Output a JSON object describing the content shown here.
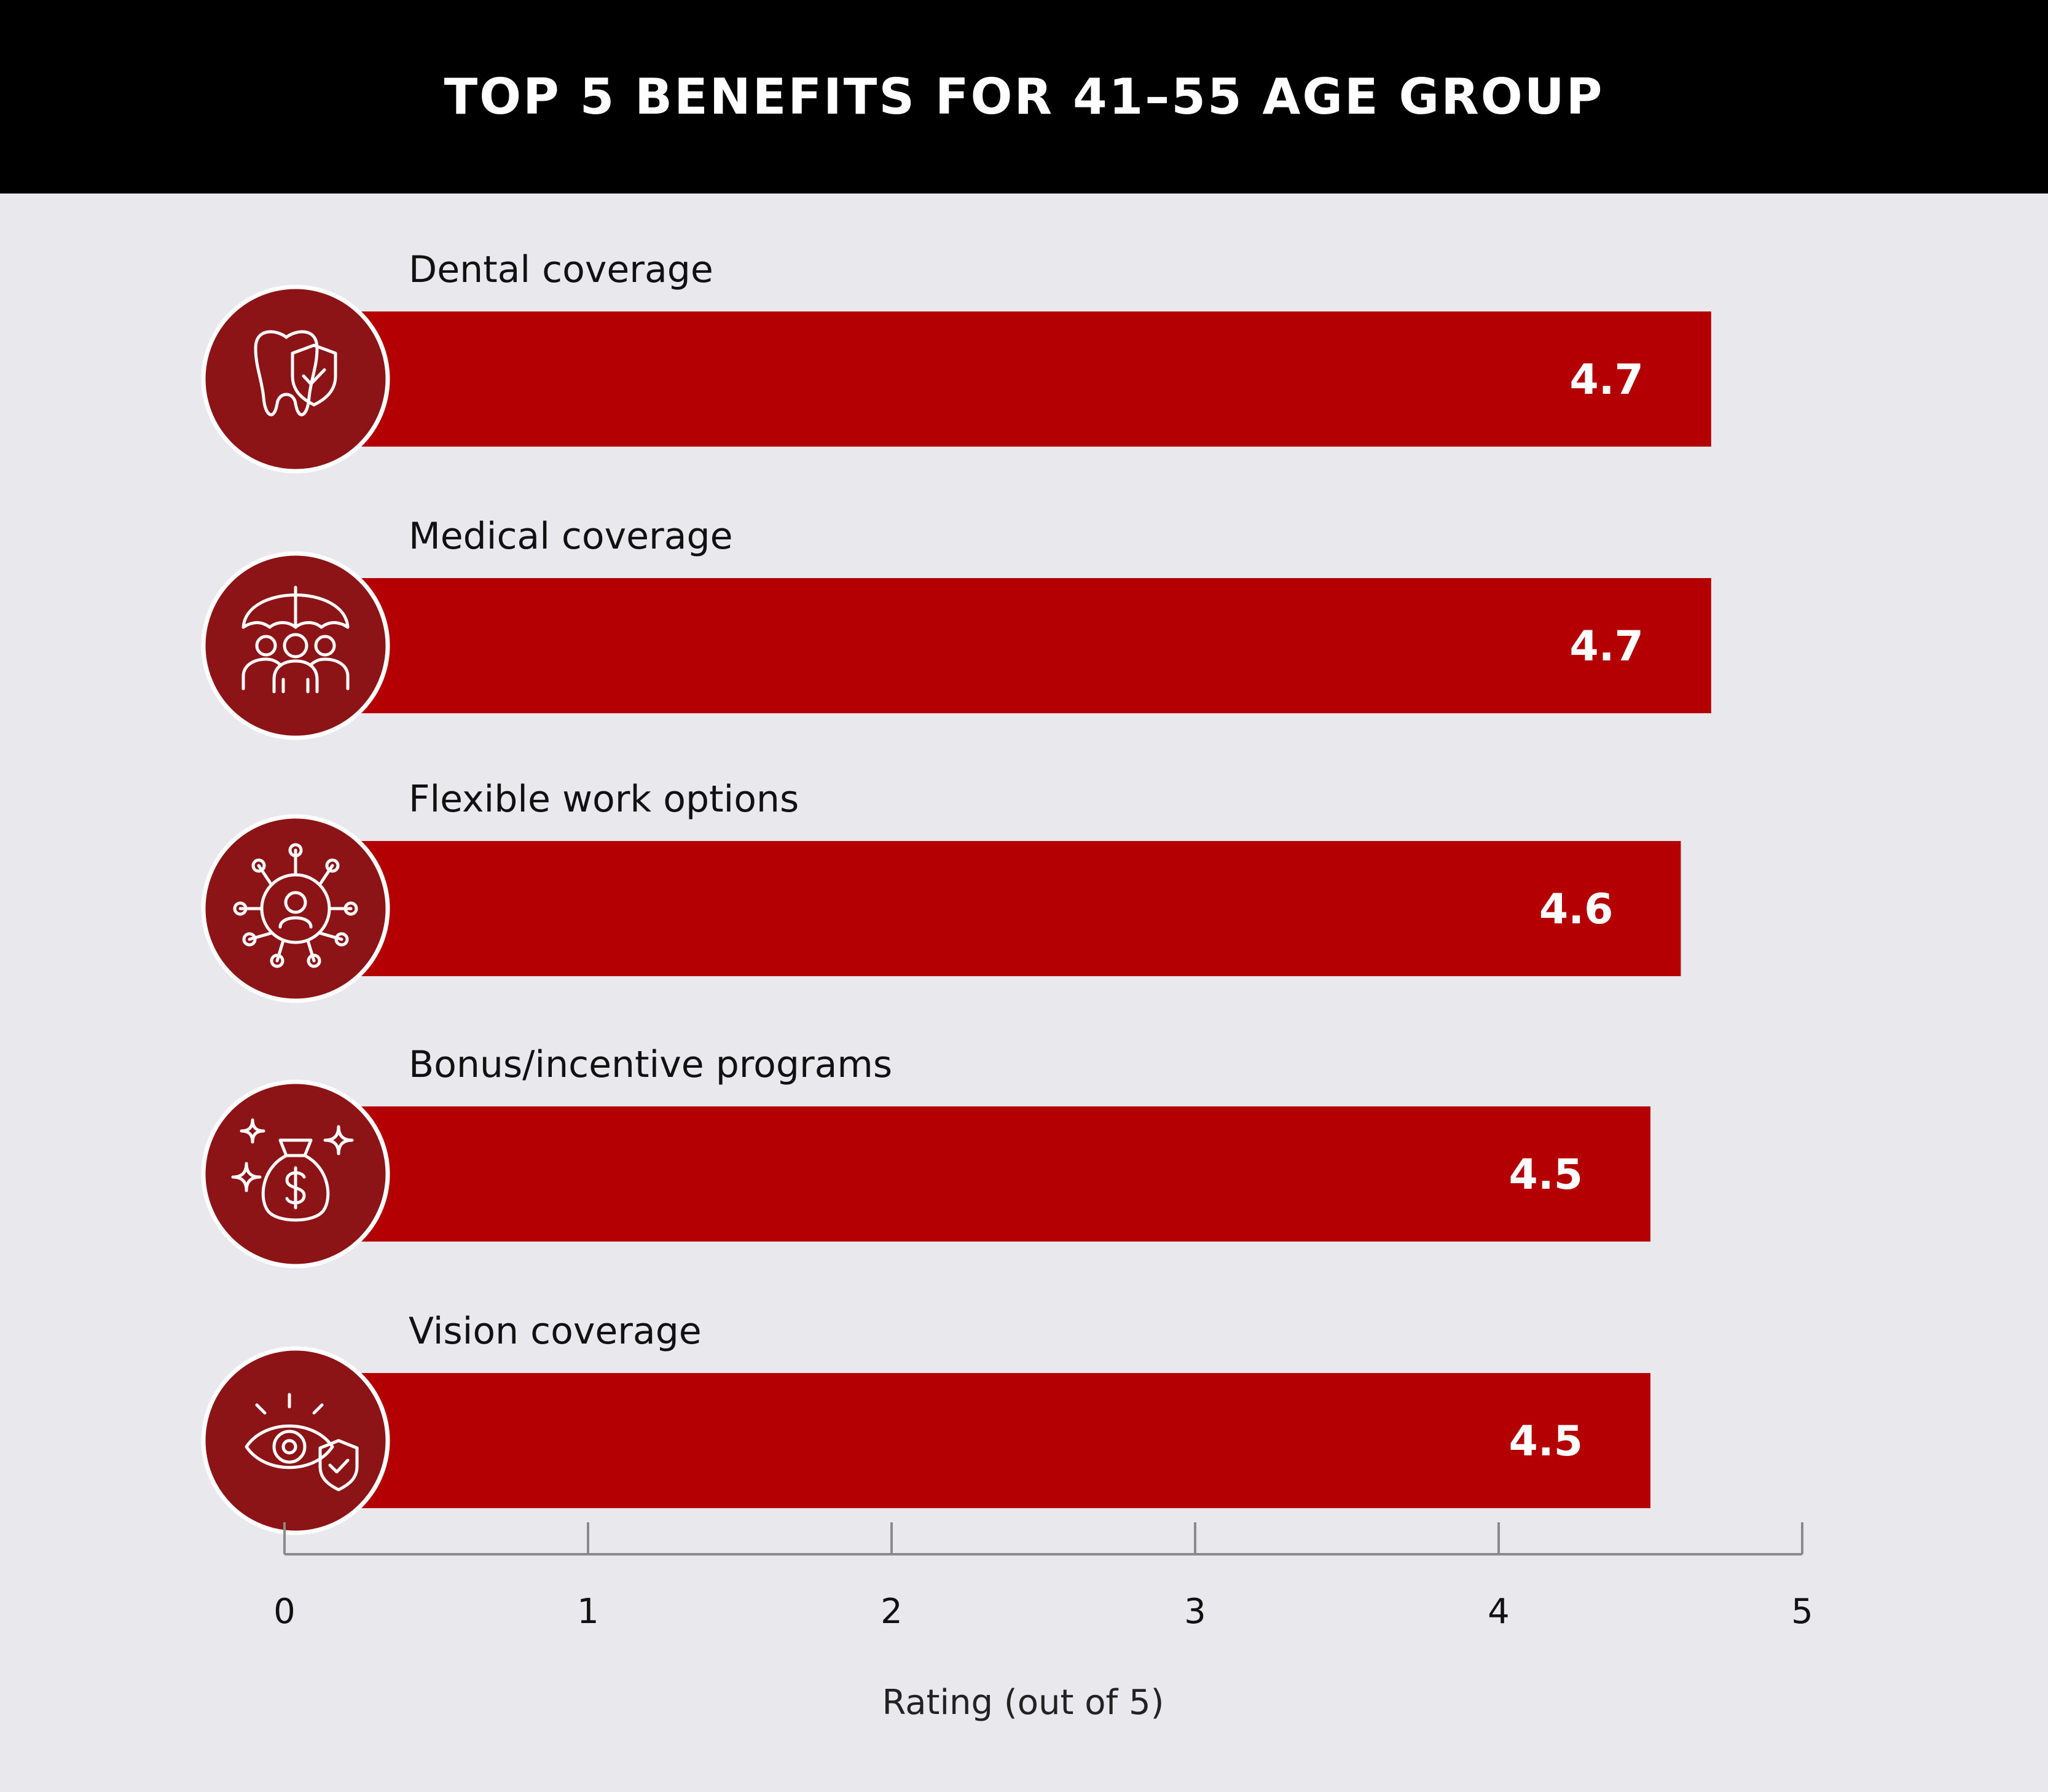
{
  "header": {
    "title": "TOP 5 BENEFITS FOR 41–55 AGE GROUP"
  },
  "colors": {
    "background": "#e8e8ed",
    "header_bg": "#000000",
    "bar": "#b50003",
    "icon_circle": "#8c1417",
    "axis": "#8a8a8a"
  },
  "chart_data": {
    "type": "bar",
    "orientation": "horizontal",
    "title": "TOP 5 BENEFITS FOR 41–55 AGE GROUP",
    "categories": [
      "Dental coverage",
      "Medical coverage",
      "Flexible work options",
      "Bonus/incentive programs",
      "Vision coverage"
    ],
    "values": [
      4.7,
      4.7,
      4.6,
      4.5,
      4.5
    ],
    "value_labels": [
      "4.7",
      "4.7",
      "4.6",
      "4.5",
      "4.5"
    ],
    "icons": [
      "tooth-shield-icon",
      "umbrella-family-icon",
      "network-person-icon",
      "money-bag-sparkle-icon",
      "eye-shield-icon"
    ],
    "xlabel": "Rating (out of 5)",
    "ylabel": "",
    "xlim": [
      0,
      5
    ],
    "xticks": [
      "0",
      "1",
      "2",
      "3",
      "4",
      "5"
    ],
    "grid": false,
    "legend": "none"
  }
}
